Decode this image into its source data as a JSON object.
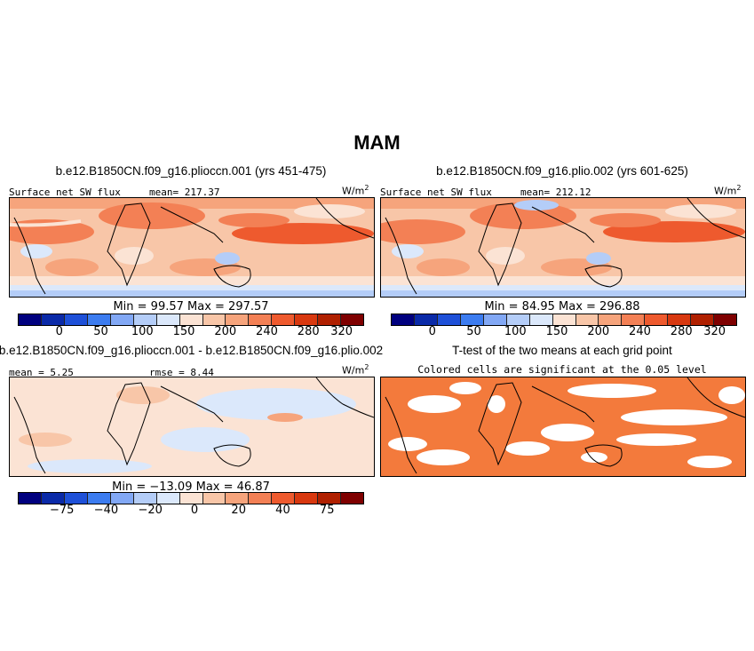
{
  "title": "MAM",
  "panels": {
    "p1": {
      "title": "b.e12.B1850CN.f09_g16.plioccn.001 (yrs 451-475)",
      "left_label": "Surface net SW flux",
      "mean_label": "mean= 217.37",
      "units": "W/m",
      "units_exp": "2",
      "minmax": "Min =  99.57 Max = 297.57"
    },
    "p2": {
      "title": "b.e12.B1850CN.f09_g16.plio.002 (yrs 601-625)",
      "left_label": "Surface net SW flux",
      "mean_label": "mean= 212.12",
      "units": "W/m",
      "units_exp": "2",
      "minmax": "Min =  84.95 Max = 296.88"
    },
    "p3": {
      "title": "b.e12.B1850CN.f09_g16.plioccn.001 - b.e12.B1850CN.f09_g16.plio.002",
      "left_label": "mean =  5.25",
      "mean_label": "rmse =  8.44",
      "units": "W/m",
      "units_exp": "2",
      "minmax": "Min = −13.09 Max =  46.87"
    },
    "p4": {
      "title": "T-test of the two means at each grid point",
      "subtitle": "Colored cells are significant at the 0.05 level"
    }
  },
  "colorbar_abs": {
    "colors": [
      "#00007f",
      "#0a2aa8",
      "#1e50d8",
      "#3c7cf0",
      "#82a8f5",
      "#b4cdf8",
      "#dbe8fb",
      "#fbe3d4",
      "#f8c6a8",
      "#f6a47c",
      "#f38055",
      "#ee5a2e",
      "#d8380f",
      "#b02000",
      "#7f0000"
    ],
    "ticks": [
      "0",
      "50",
      "100",
      "150",
      "200",
      "240",
      "280",
      "320"
    ]
  },
  "colorbar_diff": {
    "colors": [
      "#00007f",
      "#0a2aa8",
      "#1e50d8",
      "#3c7cf0",
      "#82a8f5",
      "#b4cdf8",
      "#dbe8fb",
      "#fbe3d4",
      "#f8c6a8",
      "#f6a47c",
      "#f38055",
      "#ee5a2e",
      "#d8380f",
      "#b02000",
      "#7f0000"
    ],
    "ticks": [
      "−75",
      "−40",
      "−20",
      "0",
      "20",
      "40",
      "75"
    ]
  }
}
